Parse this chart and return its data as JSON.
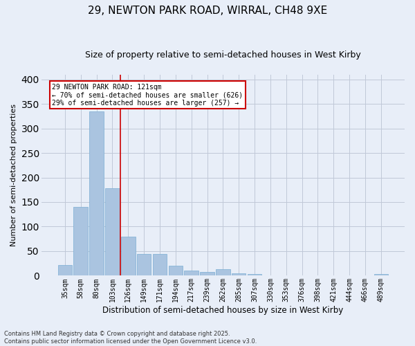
{
  "title": "29, NEWTON PARK ROAD, WIRRAL, CH48 9XE",
  "subtitle": "Size of property relative to semi-detached houses in West Kirby",
  "xlabel": "Distribution of semi-detached houses by size in West Kirby",
  "ylabel": "Number of semi-detached properties",
  "bins": [
    "35sqm",
    "58sqm",
    "80sqm",
    "103sqm",
    "126sqm",
    "149sqm",
    "171sqm",
    "194sqm",
    "217sqm",
    "239sqm",
    "262sqm",
    "285sqm",
    "307sqm",
    "330sqm",
    "353sqm",
    "376sqm",
    "398sqm",
    "421sqm",
    "444sqm",
    "466sqm",
    "489sqm"
  ],
  "values": [
    22,
    140,
    335,
    178,
    80,
    44,
    44,
    20,
    11,
    7,
    13,
    5,
    4,
    0,
    0,
    1,
    0,
    0,
    0,
    0,
    4
  ],
  "bar_color": "#aac4e0",
  "bar_edge_color": "#7aadd4",
  "vline_x": 3.5,
  "vline_color": "#cc0000",
  "annotation_title": "29 NEWTON PARK ROAD: 121sqm",
  "annotation_line1": "← 70% of semi-detached houses are smaller (626)",
  "annotation_line2": "29% of semi-detached houses are larger (257) →",
  "annotation_box_color": "#ffffff",
  "annotation_box_edge": "#cc0000",
  "grid_color": "#c0c8d8",
  "background_color": "#e8eef8",
  "footer_line1": "Contains HM Land Registry data © Crown copyright and database right 2025.",
  "footer_line2": "Contains public sector information licensed under the Open Government Licence v3.0.",
  "ylim": [
    0,
    410
  ],
  "yticks": [
    0,
    50,
    100,
    150,
    200,
    250,
    300,
    350,
    400
  ],
  "title_fontsize": 11,
  "subtitle_fontsize": 9,
  "ylabel_fontsize": 8,
  "xlabel_fontsize": 8.5,
  "tick_fontsize": 7,
  "annot_fontsize": 7,
  "footer_fontsize": 6
}
